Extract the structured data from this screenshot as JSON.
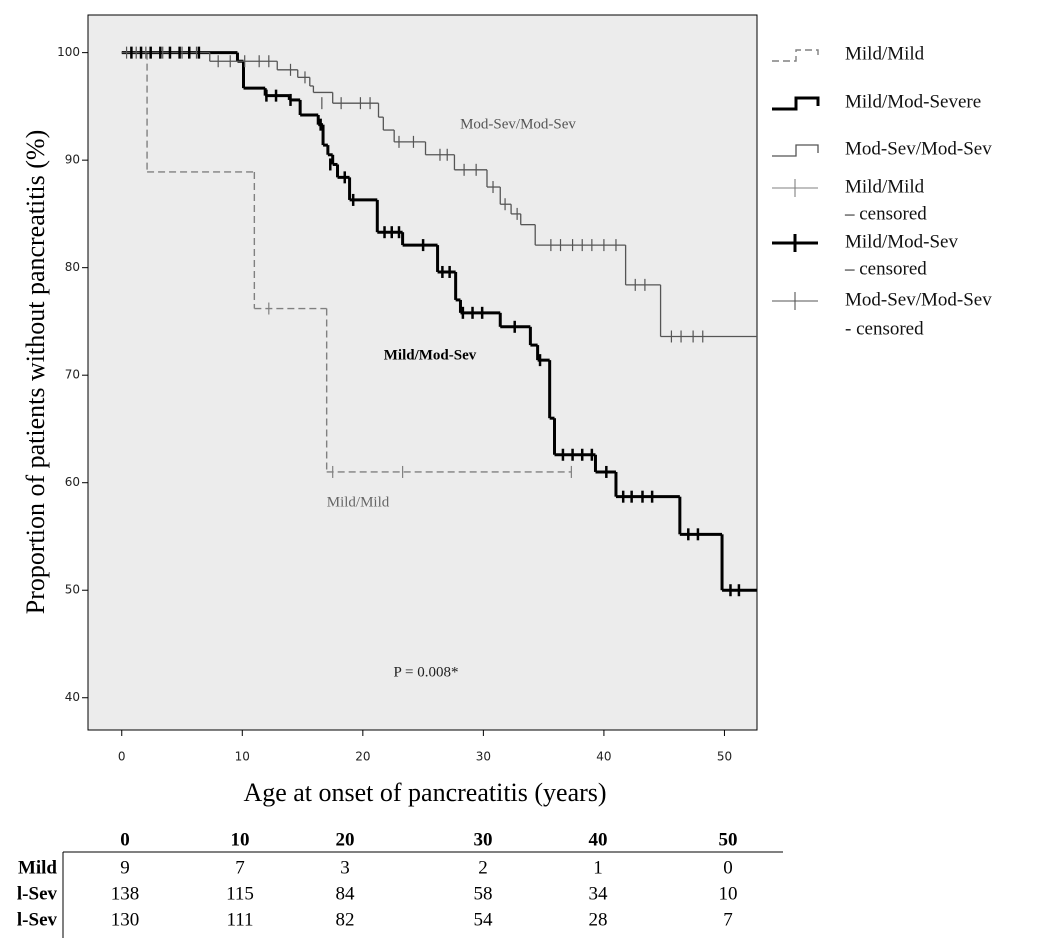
{
  "chart_data": {
    "type": "step",
    "x_label": "Age at onset of pancreatitis (years)",
    "y_label": "Proportion of patients without pancreatitis (%)",
    "xlim": [
      -2.8,
      52.7
    ],
    "ylim": [
      37,
      103.5
    ],
    "xticks": [
      0,
      10,
      20,
      30,
      40,
      50
    ],
    "yticks": [
      40,
      50,
      60,
      70,
      80,
      90,
      100
    ],
    "background": "#ececec",
    "series": [
      {
        "name": "Mild/Mild",
        "style": "dashed",
        "color": "#808080",
        "x": [
          0,
          2.1,
          11.0,
          17.0,
          37.3
        ],
        "values": [
          100,
          88.9,
          76.2,
          61.0,
          61.0
        ]
      },
      {
        "name": "Mild/Mod-Severe",
        "style": "thick",
        "color": "#000000",
        "x": [
          0,
          9.6,
          10.1,
          11.9,
          13.9,
          14.8,
          16.3,
          16.7,
          17.1,
          17.5,
          17.9,
          18.9,
          21.2,
          23.3,
          26.2,
          27.7,
          28.1,
          31.4,
          33.9,
          34.5,
          35.5,
          35.9,
          39.3,
          41.0,
          46.3,
          49.8,
          52.7
        ],
        "values": [
          100,
          99.2,
          96.7,
          96.0,
          95.6,
          94.2,
          93.3,
          91.4,
          90.5,
          89.6,
          88.4,
          86.3,
          83.3,
          82.1,
          79.6,
          77.0,
          75.8,
          74.5,
          72.8,
          71.4,
          66.0,
          62.6,
          61.0,
          58.7,
          55.2,
          50.0,
          50.0
        ]
      },
      {
        "name": "Mod-Sev/Mod-Sev",
        "style": "thin",
        "color": "#555555",
        "x": [
          0,
          7.3,
          12.9,
          14.6,
          15.6,
          15.9,
          17.5,
          21.3,
          21.7,
          22.6,
          25.2,
          27.6,
          30.3,
          31.4,
          32.3,
          33.1,
          34.3,
          41.8,
          44.7,
          52.7
        ],
        "values": [
          100,
          99.2,
          98.4,
          97.7,
          96.9,
          96.3,
          95.3,
          94.0,
          92.8,
          91.7,
          90.5,
          89.1,
          87.5,
          85.9,
          85.0,
          84.0,
          82.1,
          78.4,
          73.6,
          73.6
        ]
      },
      {
        "name_lines": [
          "Mild/Mild",
          "– censored"
        ],
        "censored": true,
        "style": "thin",
        "color": "#808080",
        "x": [
          12.2,
          17.5,
          23.3,
          37.3
        ],
        "values": [
          76.2,
          61.0,
          61.0,
          61.0
        ]
      },
      {
        "name_lines": [
          "Mild/Mod-Sev",
          "– censored"
        ],
        "censored": true,
        "style": "thick",
        "color": "#000000",
        "x": [
          0.8,
          1.6,
          2.4,
          3.2,
          4.0,
          4.8,
          5.6,
          6.4,
          12.0,
          12.8,
          14.0,
          16.5,
          17.3,
          18.5,
          19.2,
          21.8,
          22.4,
          23.0,
          25.0,
          26.6,
          27.2,
          28.3,
          29.1,
          29.9,
          32.6,
          34.7,
          36.6,
          37.4,
          38.2,
          39.0,
          40.2,
          41.6,
          42.3,
          43.2,
          44.0,
          47.0,
          47.8,
          50.5,
          51.2
        ],
        "values": [
          100,
          100,
          100,
          100,
          100,
          100,
          100,
          100,
          96.0,
          96.0,
          95.6,
          93.3,
          89.6,
          88.4,
          86.3,
          83.3,
          83.3,
          83.3,
          82.1,
          79.6,
          79.6,
          75.8,
          75.8,
          75.8,
          74.5,
          71.4,
          62.6,
          62.6,
          62.6,
          62.6,
          61.0,
          58.7,
          58.7,
          58.7,
          58.7,
          55.2,
          55.2,
          50.0,
          50.0
        ]
      },
      {
        "name_lines": [
          "Mod-Sev/Mod-Sev",
          "- censored"
        ],
        "censored": true,
        "style": "thin",
        "color": "#555555",
        "x": [
          0.4,
          1.2,
          2.0,
          3.4,
          5.0,
          6.2,
          8.0,
          9.0,
          10.2,
          11.4,
          12.2,
          14.0,
          15.2,
          16.6,
          18.2,
          19.8,
          20.6,
          23.0,
          24.2,
          26.4,
          27.0,
          28.4,
          29.4,
          30.8,
          31.8,
          32.8,
          35.6,
          36.4,
          37.4,
          38.2,
          39.0,
          40.0,
          41.0,
          42.6,
          43.4,
          45.6,
          46.4,
          47.4,
          48.2
        ],
        "values": [
          100,
          100,
          100,
          100,
          100,
          100,
          99.2,
          99.2,
          99.2,
          99.2,
          99.2,
          98.4,
          97.7,
          95.3,
          95.3,
          95.3,
          95.3,
          91.7,
          91.7,
          90.5,
          90.5,
          89.1,
          89.1,
          87.5,
          85.9,
          85.0,
          82.1,
          82.1,
          82.1,
          82.1,
          82.1,
          82.1,
          82.1,
          78.4,
          78.4,
          73.6,
          73.6,
          73.6,
          73.6
        ]
      }
    ],
    "annotations": [
      "Mod-Sev/Mod-Sev",
      "Mild/Mod-Sev",
      "Mild/Mild",
      "P = 0.008*"
    ],
    "risk_table": {
      "columns": [
        0,
        10,
        20,
        30,
        40,
        50
      ],
      "rows": [
        {
          "label": "Mild",
          "values": [
            9,
            7,
            3,
            2,
            1,
            0
          ]
        },
        {
          "label": "l-Sev",
          "values": [
            138,
            115,
            84,
            58,
            34,
            10
          ]
        },
        {
          "label": "l-Sev",
          "values": [
            130,
            111,
            82,
            54,
            28,
            7
          ]
        }
      ]
    }
  }
}
